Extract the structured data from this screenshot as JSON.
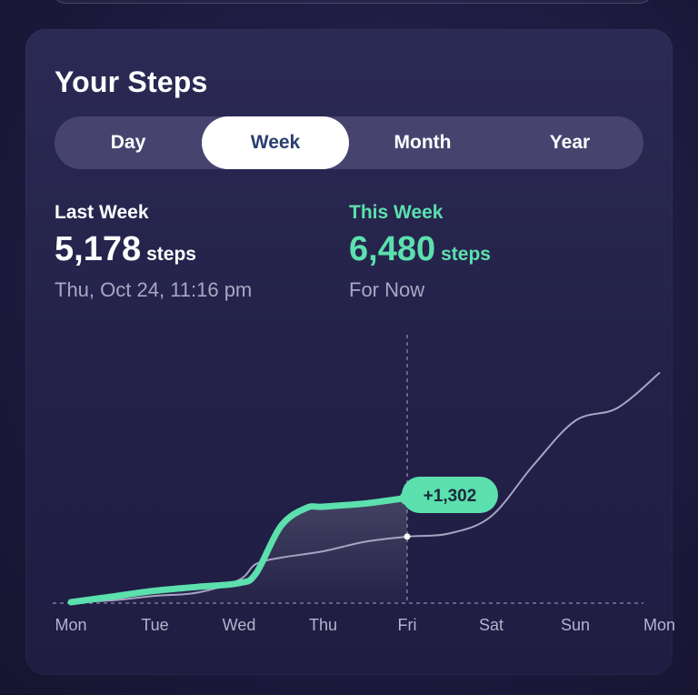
{
  "header": {
    "title": "Your Steps"
  },
  "tabs": [
    {
      "label": "Day",
      "active": false
    },
    {
      "label": "Week",
      "active": true
    },
    {
      "label": "Month",
      "active": false
    },
    {
      "label": "Year",
      "active": false
    }
  ],
  "last_week": {
    "label": "Last Week",
    "steps": "5,178",
    "unit": "steps",
    "timestamp": "Thu, Oct 24, 11:16 pm"
  },
  "this_week": {
    "label": "This Week",
    "steps": "6,480",
    "unit": "steps",
    "note": "For Now"
  },
  "colors": {
    "accent": "#5ce0ad",
    "previous_line": "#a6a4c2",
    "active_tab_text": "#2a3f6e"
  },
  "chart_data": {
    "type": "line",
    "categories": [
      "Mon",
      "Tue",
      "Wed",
      "Thu",
      "Fri",
      "Sat",
      "Sun",
      "Mon"
    ],
    "series": [
      {
        "role": "this_week",
        "x": [
          0,
          0.5,
          1,
          1.5,
          2,
          2.2,
          2.5,
          2.8,
          3,
          3.5,
          4
        ],
        "values": [
          0,
          90,
          180,
          240,
          300,
          450,
          1200,
          1480,
          1500,
          1550,
          1640
        ]
      },
      {
        "role": "last_week",
        "x": [
          0,
          0.5,
          1,
          1.5,
          2,
          2.2,
          2.5,
          3,
          3.5,
          4,
          4.5,
          5,
          5.5,
          6,
          6.5,
          7
        ],
        "values": [
          0,
          30,
          100,
          150,
          350,
          600,
          700,
          800,
          950,
          1030,
          1080,
          1350,
          2150,
          2850,
          3050,
          3600
        ]
      }
    ],
    "current_day_index": 4,
    "difference_label": "+1,302",
    "grid": false
  }
}
